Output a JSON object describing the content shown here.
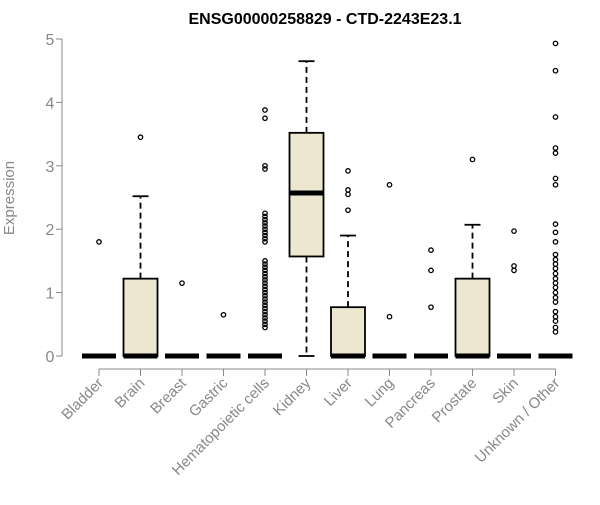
{
  "chart_data": {
    "type": "box",
    "title": "ENSG00000258829 - CTD-2243E23.1",
    "ylabel": "Expression",
    "xlabel": "",
    "ylim": [
      0,
      5
    ],
    "yticks": [
      0,
      1,
      2,
      3,
      4,
      5
    ],
    "grid": false,
    "colors": {
      "box_fill": "#ede7cf",
      "stroke": "#000000",
      "axis": "#888888",
      "tick_label": "#888888"
    },
    "categories": [
      "Bladder",
      "Brain",
      "Breast",
      "Gastric",
      "Hematopoietic cells",
      "Kidney",
      "Liver",
      "Lung",
      "Pancreas",
      "Prostate",
      "Skin",
      "Unknown / Other"
    ],
    "boxes": [
      {
        "q1": 0,
        "median": 0,
        "q3": 0,
        "whisker_low": 0,
        "whisker_high": 0,
        "outliers": [
          1.8
        ]
      },
      {
        "q1": 0,
        "median": 0,
        "q3": 1.22,
        "whisker_low": 0,
        "whisker_high": 2.52,
        "outliers": [
          3.45
        ]
      },
      {
        "q1": 0,
        "median": 0,
        "q3": 0,
        "whisker_low": 0,
        "whisker_high": 0,
        "outliers": [
          1.15
        ]
      },
      {
        "q1": 0,
        "median": 0,
        "q3": 0,
        "whisker_low": 0,
        "whisker_high": 0,
        "outliers": [
          0.65
        ]
      },
      {
        "q1": 0,
        "median": 0,
        "q3": 0,
        "whisker_low": 0,
        "whisker_high": 0,
        "outliers": [
          0.45,
          0.5,
          0.55,
          0.6,
          0.65,
          0.7,
          0.75,
          0.8,
          0.85,
          0.9,
          0.95,
          1.0,
          1.05,
          1.1,
          1.15,
          1.2,
          1.25,
          1.3,
          1.35,
          1.4,
          1.45,
          1.5,
          1.8,
          1.85,
          1.9,
          1.95,
          2.0,
          2.05,
          2.1,
          2.15,
          2.2,
          2.25,
          2.95,
          3.0,
          3.75,
          3.88
        ]
      },
      {
        "q1": 1.57,
        "median": 2.57,
        "q3": 3.52,
        "whisker_low": 0,
        "whisker_high": 4.65,
        "outliers": []
      },
      {
        "q1": 0,
        "median": 0,
        "q3": 0.77,
        "whisker_low": 0,
        "whisker_high": 1.9,
        "outliers": [
          2.3,
          2.55,
          2.62,
          2.92
        ]
      },
      {
        "q1": 0,
        "median": 0,
        "q3": 0,
        "whisker_low": 0,
        "whisker_high": 0,
        "outliers": [
          0.62,
          2.7
        ]
      },
      {
        "q1": 0,
        "median": 0,
        "q3": 0,
        "whisker_low": 0,
        "whisker_high": 0,
        "outliers": [
          0.77,
          1.35,
          1.67
        ]
      },
      {
        "q1": 0,
        "median": 0,
        "q3": 1.22,
        "whisker_low": 0,
        "whisker_high": 2.07,
        "outliers": [
          3.1
        ]
      },
      {
        "q1": 0,
        "median": 0,
        "q3": 0,
        "whisker_low": 0,
        "whisker_high": 0,
        "outliers": [
          1.35,
          1.42,
          1.97
        ]
      },
      {
        "q1": 0,
        "median": 0,
        "q3": 0,
        "whisker_low": 0,
        "whisker_high": 0,
        "outliers": [
          0.38,
          0.45,
          0.55,
          0.62,
          0.7,
          0.85,
          0.92,
          1.0,
          1.08,
          1.15,
          1.22,
          1.3,
          1.38,
          1.45,
          1.52,
          1.6,
          1.8,
          1.95,
          2.08,
          2.7,
          2.8,
          3.2,
          3.28,
          3.77,
          4.5,
          4.93
        ]
      }
    ]
  }
}
